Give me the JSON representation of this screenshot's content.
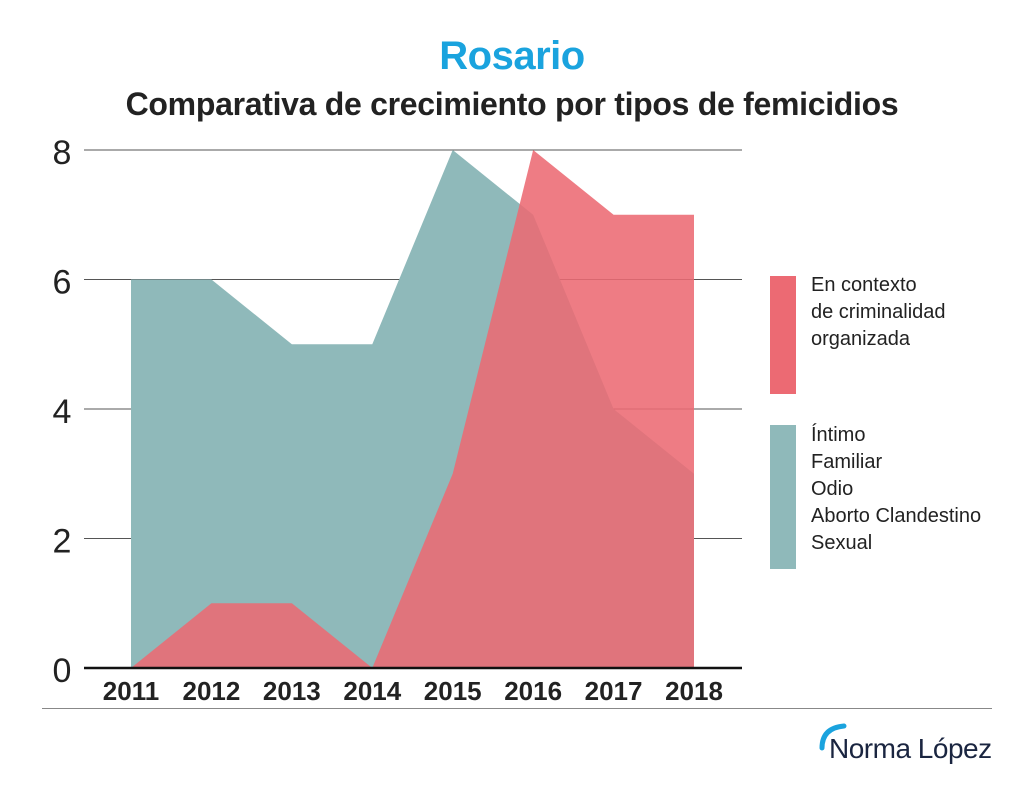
{
  "title": "Rosario",
  "subtitle": "Comparativa de crecimiento por tipos de femicidios",
  "colors": {
    "title": "#1aa3de",
    "teal": "#8fb9ba",
    "red": "#ec6a73",
    "overlap": "#d76871",
    "grid": "#555555",
    "brand_arc": "#1aa3de"
  },
  "legend": {
    "organized": {
      "lines": [
        "En contexto",
        "de criminalidad",
        "organizada"
      ]
    },
    "intimate": {
      "lines": [
        "Íntimo",
        "Familiar",
        "Odio",
        "Aborto Clandestino",
        "Sexual"
      ]
    }
  },
  "brand": {
    "name": "Norma López",
    "icon": "arc-logo-icon"
  },
  "chart_data": {
    "type": "area",
    "title": "Comparativa de crecimiento por tipos de femicidios",
    "categories": [
      "2011",
      "2012",
      "2013",
      "2014",
      "2015",
      "2016",
      "2017",
      "2018"
    ],
    "ylim": [
      0,
      8
    ],
    "yticks": [
      "0",
      "2",
      "4",
      "6",
      "8"
    ],
    "grid": true,
    "legend_position": "right",
    "series": [
      {
        "name": "Íntimo / Familiar / Odio / Aborto Clandestino / Sexual",
        "color": "#8fb9ba",
        "values": [
          6,
          6,
          5,
          5,
          8,
          7,
          4,
          3
        ]
      },
      {
        "name": "En contexto de criminalidad organizada",
        "color": "#ec6a73",
        "values": [
          0,
          1,
          1,
          0,
          3,
          8,
          7,
          7
        ]
      }
    ]
  }
}
